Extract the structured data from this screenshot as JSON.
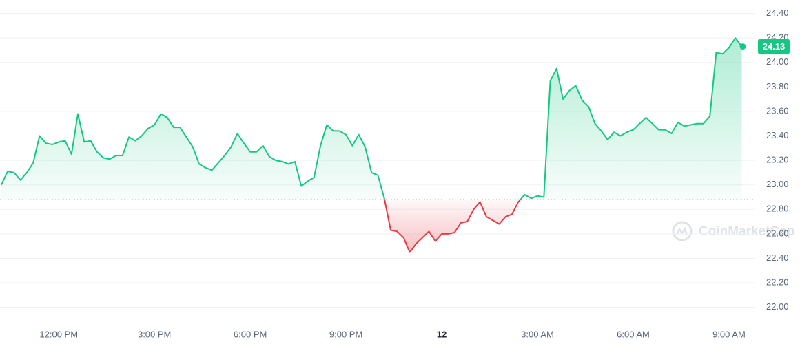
{
  "chart_data": {
    "type": "line",
    "watermark": "CoinMarketCap",
    "color_up": "#16c784",
    "color_down": "#ea3943",
    "baseline": 22.88,
    "last_price": {
      "value": 24.13,
      "label": "24.13"
    },
    "x": [
      10.2,
      10.4,
      10.6,
      10.8,
      11.0,
      11.2,
      11.4,
      11.6,
      11.8,
      12.0,
      12.2,
      12.4,
      12.6,
      12.8,
      13.0,
      13.2,
      13.4,
      13.6,
      13.8,
      14.0,
      14.2,
      14.4,
      14.6,
      14.8,
      15.0,
      15.2,
      15.4,
      15.6,
      15.8,
      16.0,
      16.2,
      16.4,
      16.6,
      16.8,
      17.0,
      17.2,
      17.4,
      17.6,
      17.8,
      18.0,
      18.2,
      18.4,
      18.6,
      18.8,
      19.0,
      19.2,
      19.4,
      19.6,
      19.8,
      20.0,
      20.2,
      20.4,
      20.6,
      20.8,
      21.0,
      21.2,
      21.4,
      21.6,
      21.8,
      22.0,
      22.2,
      22.4,
      22.6,
      22.8,
      23.0,
      23.2,
      23.4,
      23.6,
      23.8,
      24.0,
      24.2,
      24.4,
      24.6,
      24.8,
      25.0,
      25.2,
      25.4,
      25.6,
      25.8,
      26.0,
      26.2,
      26.4,
      26.6,
      26.8,
      27.0,
      27.2,
      27.4,
      27.6,
      27.8,
      28.0,
      28.2,
      28.4,
      28.6,
      28.8,
      29.0,
      29.2,
      29.4,
      29.6,
      29.8,
      30.0,
      30.2,
      30.4,
      30.6,
      30.8,
      31.0,
      31.2,
      31.4,
      31.6,
      31.8,
      32.0,
      32.2,
      32.4,
      32.6,
      32.8,
      33.0,
      33.2,
      33.4
    ],
    "series": [
      {
        "name": "Price",
        "values": [
          23.0,
          23.11,
          23.1,
          23.04,
          23.1,
          23.18,
          23.4,
          23.34,
          23.33,
          23.35,
          23.36,
          23.25,
          23.58,
          23.35,
          23.36,
          23.27,
          23.22,
          23.21,
          23.24,
          23.24,
          23.39,
          23.36,
          23.4,
          23.46,
          23.49,
          23.58,
          23.55,
          23.47,
          23.47,
          23.39,
          23.31,
          23.17,
          23.14,
          23.12,
          23.18,
          23.24,
          23.31,
          23.42,
          23.34,
          23.27,
          23.27,
          23.32,
          23.23,
          23.2,
          23.19,
          23.17,
          23.19,
          22.99,
          23.03,
          23.06,
          23.32,
          23.49,
          23.44,
          23.44,
          23.41,
          23.32,
          23.41,
          23.31,
          23.1,
          23.08,
          22.89,
          22.63,
          22.62,
          22.57,
          22.45,
          22.52,
          22.57,
          22.62,
          22.54,
          22.6,
          22.6,
          22.61,
          22.69,
          22.7,
          22.8,
          22.86,
          22.74,
          22.71,
          22.68,
          22.74,
          22.76,
          22.86,
          22.92,
          22.89,
          22.91,
          22.9,
          23.85,
          23.95,
          23.7,
          23.77,
          23.81,
          23.69,
          23.64,
          23.5,
          23.44,
          23.37,
          23.43,
          23.4,
          23.43,
          23.45,
          23.5,
          23.55,
          23.5,
          23.45,
          23.45,
          23.42,
          23.51,
          23.48,
          23.49,
          23.5,
          23.5,
          23.56,
          24.08,
          24.07,
          24.12,
          24.2,
          24.13
        ]
      }
    ],
    "xlim": [
      10.16,
      33.8
    ],
    "xticks": [
      {
        "value": 12,
        "label": "12:00 PM"
      },
      {
        "value": 15,
        "label": "3:00 PM"
      },
      {
        "value": 18,
        "label": "6:00 PM"
      },
      {
        "value": 21,
        "label": "9:00 PM"
      },
      {
        "value": 24,
        "label": "12"
      },
      {
        "value": 27,
        "label": "3:00 AM"
      },
      {
        "value": 30,
        "label": "6:00 AM"
      },
      {
        "value": 33,
        "label": "9:00 AM"
      }
    ],
    "ylim": [
      21.88,
      24.51
    ],
    "yticks": [
      {
        "value": 22.0,
        "label": "22.00"
      },
      {
        "value": 22.2,
        "label": "22.20"
      },
      {
        "value": 22.4,
        "label": "22.40"
      },
      {
        "value": 22.6,
        "label": "22.60"
      },
      {
        "value": 22.8,
        "label": "22.80"
      },
      {
        "value": 23.0,
        "label": "23.00"
      },
      {
        "value": 23.2,
        "label": "23.20"
      },
      {
        "value": 23.4,
        "label": "23.40"
      },
      {
        "value": 23.6,
        "label": "23.60"
      },
      {
        "value": 23.8,
        "label": "23.80"
      },
      {
        "value": 24.0,
        "label": "24.00"
      },
      {
        "value": 24.2,
        "label": "24.20"
      },
      {
        "value": 24.4,
        "label": "24.40"
      }
    ],
    "grid": true
  }
}
